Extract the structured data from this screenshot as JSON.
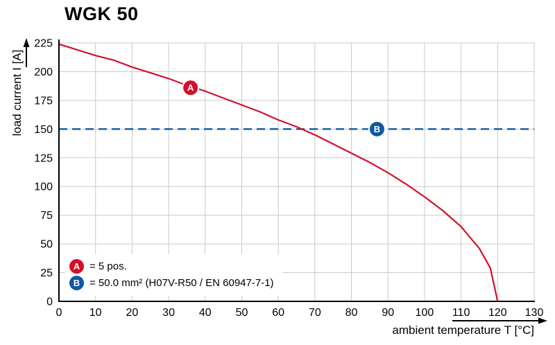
{
  "title": "WGK 50",
  "axes": {
    "x_label": "ambient temperature T [°C]",
    "y_label": "load current I [A]"
  },
  "legend": {
    "items": [
      {
        "symbol": "A",
        "color": "#d40f2c",
        "text": "= 5 pos."
      },
      {
        "symbol": "B",
        "color": "#10589f",
        "text": "= 50.0 mm² (H07V-R50 / EN 60947-7-1)"
      }
    ]
  },
  "chart_data": {
    "type": "line",
    "title": "WGK 50",
    "xlabel": "ambient temperature T [°C]",
    "ylabel": "load current I [A]",
    "xlim": [
      0,
      130
    ],
    "ylim": [
      0,
      225
    ],
    "x_ticks": [
      0,
      10,
      20,
      30,
      40,
      50,
      60,
      70,
      80,
      90,
      100,
      110,
      120,
      130
    ],
    "y_ticks": [
      0,
      25,
      50,
      75,
      100,
      125,
      150,
      175,
      200,
      225
    ],
    "grid": true,
    "legend_position": "bottom-left-inside",
    "colors": {
      "grid": "#c9c9c9",
      "axis": "#000000",
      "curve": "#d40f2c",
      "hline": "#10589f"
    },
    "series": [
      {
        "name": "A",
        "label": "= 5 pos.",
        "kind": "curve",
        "color": "#d40f2c",
        "style": "solid",
        "points": [
          [
            0,
            224
          ],
          [
            5,
            219
          ],
          [
            10,
            214
          ],
          [
            15,
            210
          ],
          [
            20,
            204
          ],
          [
            25,
            199
          ],
          [
            30,
            194
          ],
          [
            35,
            188
          ],
          [
            40,
            183
          ],
          [
            45,
            177
          ],
          [
            50,
            171
          ],
          [
            55,
            165
          ],
          [
            60,
            158
          ],
          [
            65,
            152
          ],
          [
            70,
            145
          ],
          [
            75,
            137
          ],
          [
            80,
            129
          ],
          [
            85,
            121
          ],
          [
            90,
            112
          ],
          [
            95,
            102
          ],
          [
            100,
            91
          ],
          [
            105,
            79
          ],
          [
            110,
            65
          ],
          [
            115,
            46
          ],
          [
            118,
            29
          ],
          [
            120,
            0
          ]
        ]
      },
      {
        "name": "B",
        "label": "= 50.0 mm² (H07V-R50 / EN 60947-7-1)",
        "kind": "hline",
        "color": "#10589f",
        "style": "dashed",
        "value": 150
      }
    ],
    "markers": [
      {
        "label": "A",
        "x": 36,
        "y": 186,
        "color": "#d40f2c"
      },
      {
        "label": "B",
        "x": 87,
        "y": 150,
        "color": "#10589f"
      }
    ]
  }
}
